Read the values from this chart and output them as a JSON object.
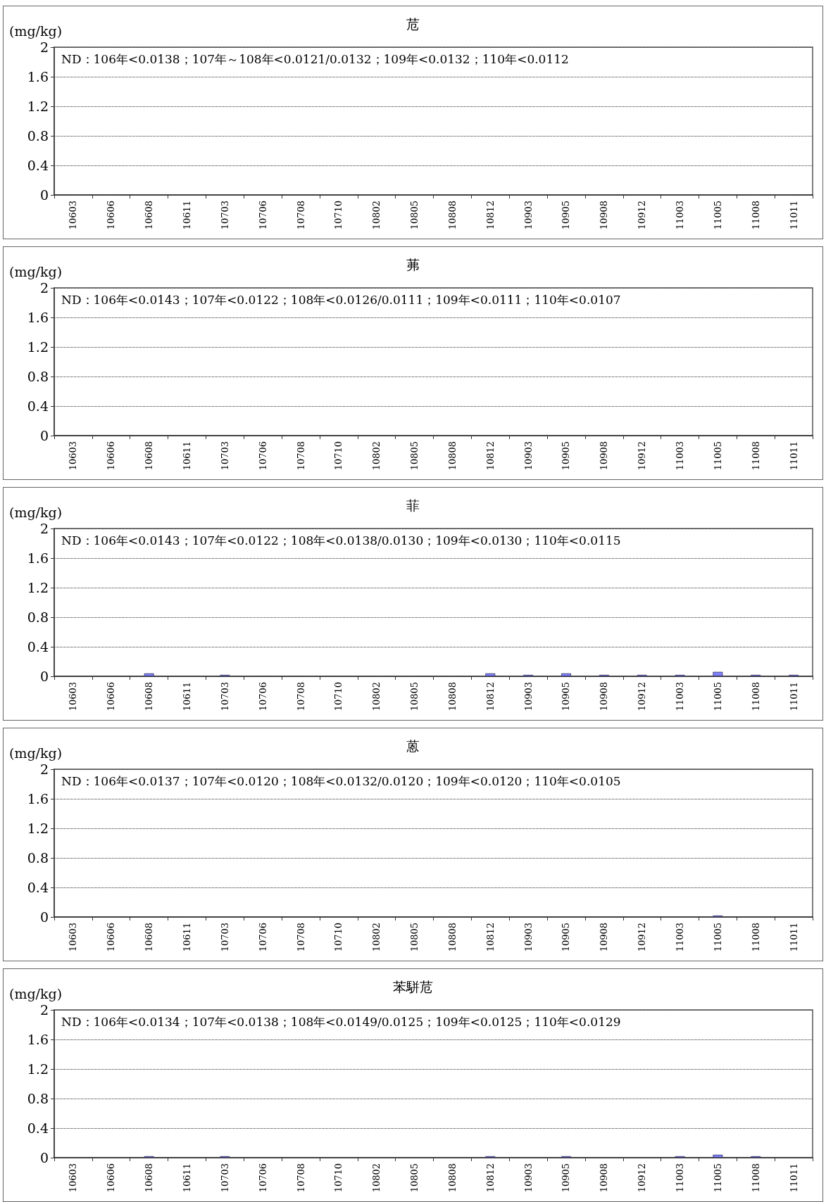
{
  "chart_data": [
    {
      "type": "bar",
      "title": "苊",
      "ylabel": "(mg/kg)",
      "annotations": [
        "ND：106年<0.0138；107年～108年<0.0121/0.0132；109年<0.0132；110年<0.0112"
      ],
      "categories": [
        "10603",
        "10606",
        "10608",
        "10611",
        "10703",
        "10706",
        "10708",
        "10710",
        "10802",
        "10805",
        "10808",
        "10812",
        "10903",
        "10905",
        "10908",
        "10912",
        "11003",
        "11005",
        "11008",
        "11011"
      ],
      "values": [
        null,
        null,
        null,
        null,
        null,
        null,
        null,
        null,
        null,
        null,
        null,
        null,
        null,
        null,
        null,
        null,
        null,
        null,
        null,
        null
      ],
      "color": "#8080ff",
      "ylim": [
        0,
        2
      ],
      "yticks": [
        0,
        0.4,
        0.8,
        1.2,
        1.6,
        2
      ],
      "grid": "y"
    },
    {
      "type": "bar",
      "title": "茀",
      "ylabel": "(mg/kg)",
      "annotations": [
        "ND：106年<0.0143；107年<0.0122；108年<0.0126/0.0111；109年<0.0111；110年<0.0107"
      ],
      "categories": [
        "10603",
        "10606",
        "10608",
        "10611",
        "10703",
        "10706",
        "10708",
        "10710",
        "10802",
        "10805",
        "10808",
        "10812",
        "10903",
        "10905",
        "10908",
        "10912",
        "11003",
        "11005",
        "11008",
        "11011"
      ],
      "values": [
        null,
        null,
        null,
        null,
        null,
        null,
        null,
        null,
        null,
        null,
        null,
        null,
        null,
        null,
        null,
        null,
        null,
        null,
        null,
        null
      ],
      "color": "#8080ff",
      "ylim": [
        0,
        2
      ],
      "yticks": [
        0,
        0.4,
        0.8,
        1.2,
        1.6,
        2
      ],
      "grid": "y"
    },
    {
      "type": "bar",
      "title": "菲",
      "ylabel": "(mg/kg)",
      "annotations": [
        "ND：106年<0.0143；107年<0.0122；108年<0.0138/0.0130；109年<0.0130；110年<0.0115"
      ],
      "categories": [
        "10603",
        "10606",
        "10608",
        "10611",
        "10703",
        "10706",
        "10708",
        "10710",
        "10802",
        "10805",
        "10808",
        "10812",
        "10903",
        "10905",
        "10908",
        "10912",
        "11003",
        "11005",
        "11008",
        "11011"
      ],
      "values": [
        null,
        null,
        0.04,
        null,
        0.02,
        null,
        null,
        null,
        null,
        null,
        null,
        0.04,
        0.02,
        0.04,
        0.02,
        0.02,
        0.02,
        0.06,
        0.02,
        0.02
      ],
      "color": "#8080ff",
      "ylim": [
        0,
        2
      ],
      "yticks": [
        0,
        0.4,
        0.8,
        1.2,
        1.6,
        2
      ],
      "grid": "y"
    },
    {
      "type": "bar",
      "title": "蒽",
      "ylabel": "(mg/kg)",
      "annotations": [
        "ND：106年<0.0137；107年<0.0120；108年<0.0132/0.0120；109年<0.0120；110年<0.0105"
      ],
      "categories": [
        "10603",
        "10606",
        "10608",
        "10611",
        "10703",
        "10706",
        "10708",
        "10710",
        "10802",
        "10805",
        "10808",
        "10812",
        "10903",
        "10905",
        "10908",
        "10912",
        "11003",
        "11005",
        "11008",
        "11011"
      ],
      "values": [
        null,
        null,
        null,
        null,
        null,
        null,
        null,
        null,
        null,
        null,
        null,
        null,
        null,
        null,
        null,
        null,
        null,
        0.02,
        null,
        null
      ],
      "color": "#8080ff",
      "ylim": [
        0,
        2
      ],
      "yticks": [
        0,
        0.4,
        0.8,
        1.2,
        1.6,
        2
      ],
      "grid": "y"
    },
    {
      "type": "bar",
      "title": "苯駢苊",
      "ylabel": "(mg/kg)",
      "annotations": [
        "ND：106年<0.0134；107年<0.0138；108年<0.0149/0.0125；109年<0.0125；110年<0.0129"
      ],
      "categories": [
        "10603",
        "10606",
        "10608",
        "10611",
        "10703",
        "10706",
        "10708",
        "10710",
        "10802",
        "10805",
        "10808",
        "10812",
        "10903",
        "10905",
        "10908",
        "10912",
        "11003",
        "11005",
        "11008",
        "11011"
      ],
      "values": [
        null,
        null,
        0.02,
        null,
        0.02,
        null,
        null,
        null,
        null,
        null,
        null,
        0.02,
        null,
        0.02,
        null,
        null,
        0.02,
        0.04,
        0.02,
        null
      ],
      "color": "#8080ff",
      "ylim": [
        0,
        2
      ],
      "yticks": [
        0,
        0.4,
        0.8,
        1.2,
        1.6,
        2
      ],
      "grid": "y"
    }
  ]
}
